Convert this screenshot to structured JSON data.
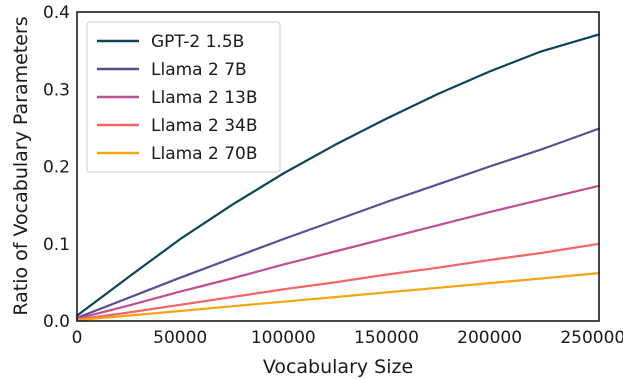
{
  "chart_data": {
    "type": "line",
    "xlabel": "Vocabulary Size",
    "ylabel": "Ratio of Vocabulary Parameters",
    "xlim": [
      0,
      253000
    ],
    "ylim": [
      0,
      0.4
    ],
    "xticks": [
      0,
      50000,
      100000,
      150000,
      200000,
      250000
    ],
    "xtick_labels": [
      "0",
      "50000",
      "100000",
      "150000",
      "200000",
      "250000"
    ],
    "yticks": [
      0,
      0.1,
      0.2,
      0.3,
      0.4
    ],
    "ytick_labels": [
      "0.0",
      "0.1",
      "0.2",
      "0.3",
      "0.4"
    ],
    "grid": false,
    "legend_position": "top-left",
    "x": [
      0,
      25000,
      50000,
      75000,
      100000,
      125000,
      150000,
      175000,
      200000,
      225000,
      253000
    ],
    "series": [
      {
        "name": "GPT-2 1.5B",
        "color": "#0d4459",
        "values": [
          0.007,
          0.057,
          0.106,
          0.15,
          0.191,
          0.228,
          0.262,
          0.294,
          0.323,
          0.349,
          0.371
        ]
      },
      {
        "name": "Llama 2 7B",
        "color": "#5a4e92",
        "values": [
          0.004,
          0.03,
          0.056,
          0.081,
          0.106,
          0.13,
          0.154,
          0.177,
          0.2,
          0.222,
          0.249
        ]
      },
      {
        "name": "Llama 2 13B",
        "color": "#bf4d98",
        "values": [
          0.003,
          0.02,
          0.038,
          0.055,
          0.073,
          0.09,
          0.107,
          0.124,
          0.141,
          0.157,
          0.175
        ]
      },
      {
        "name": "Llama 2 34B",
        "color": "#f46468",
        "values": [
          0.002,
          0.011,
          0.021,
          0.031,
          0.041,
          0.05,
          0.06,
          0.069,
          0.079,
          0.088,
          0.1
        ]
      },
      {
        "name": "Llama 2 70B",
        "color": "#f5a412",
        "values": [
          0.001,
          0.007,
          0.013,
          0.019,
          0.025,
          0.031,
          0.037,
          0.043,
          0.049,
          0.055,
          0.062
        ]
      }
    ]
  }
}
